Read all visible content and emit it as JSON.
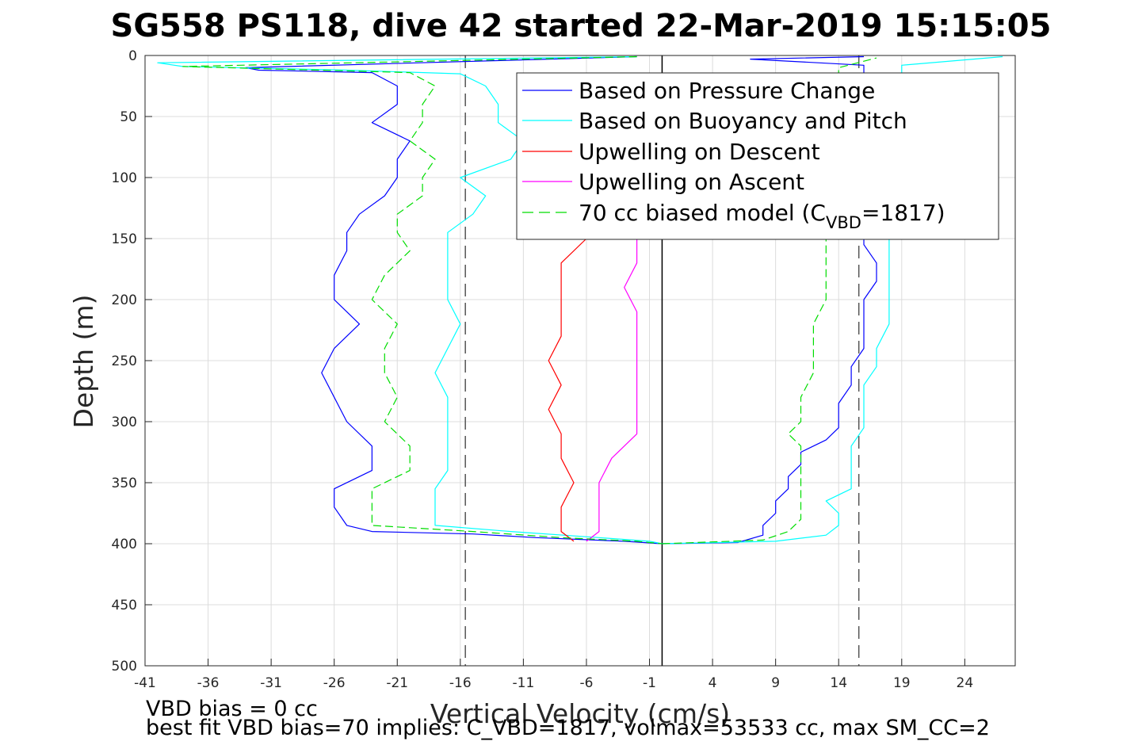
{
  "chart_data": {
    "type": "line",
    "title": "SG558 PS118, dive 42 started 22-Mar-2019 15:15:05",
    "xlabel": "Vertical Velocity (cm/s)",
    "ylabel": "Depth (m)",
    "xlim": [
      -41,
      28
    ],
    "ylim": [
      0,
      500
    ],
    "y_reversed": true,
    "grid": true,
    "xticks": [
      -41,
      -36,
      -31,
      -26,
      -21,
      -16,
      -11,
      -6,
      -1,
      4,
      9,
      14,
      19,
      24
    ],
    "yticks": [
      0,
      50,
      100,
      150,
      200,
      250,
      300,
      350,
      400,
      450,
      500
    ],
    "legend_position": "top-right",
    "legend": [
      {
        "label": "Based on Pressure Change",
        "color": "#0000ff",
        "dash": "solid"
      },
      {
        "label": "Based on Buoyancy and Pitch",
        "color": "#00ffff",
        "dash": "solid"
      },
      {
        "label": "Upwelling on Descent",
        "color": "#ff0000",
        "dash": "solid"
      },
      {
        "label": "Upwelling on Ascent",
        "color": "#ff00ff",
        "dash": "solid"
      },
      {
        "label_prefix": "70 cc biased model (C",
        "label_sub": "VBD",
        "label_suffix": "=1817)",
        "color": "#00dd00",
        "dash": "dashed"
      }
    ],
    "reference_lines": [
      {
        "x": -15.6,
        "style": "dashed",
        "color": "#555555"
      },
      {
        "x": 15.6,
        "style": "dashed",
        "color": "#555555"
      },
      {
        "x": 0,
        "style": "solid",
        "color": "#000000"
      }
    ],
    "series": [
      {
        "name": "Based on Pressure Change",
        "color": "#0000ff",
        "dash": "solid",
        "points": [
          [
            -2,
            1
          ],
          [
            -33,
            10
          ],
          [
            -32,
            12
          ],
          [
            -23,
            14
          ],
          [
            -21,
            25
          ],
          [
            -21,
            40
          ],
          [
            -23,
            55
          ],
          [
            -20,
            70
          ],
          [
            -21,
            85
          ],
          [
            -21,
            100
          ],
          [
            -22,
            115
          ],
          [
            -24,
            130
          ],
          [
            -25,
            145
          ],
          [
            -25,
            160
          ],
          [
            -26,
            180
          ],
          [
            -26,
            200
          ],
          [
            -24,
            220
          ],
          [
            -26,
            240
          ],
          [
            -27,
            260
          ],
          [
            -26,
            280
          ],
          [
            -25,
            300
          ],
          [
            -23,
            320
          ],
          [
            -23,
            340
          ],
          [
            -26,
            355
          ],
          [
            -26,
            370
          ],
          [
            -25,
            385
          ],
          [
            -23,
            390
          ],
          [
            -15,
            392
          ],
          [
            -10,
            395
          ],
          [
            -3,
            398
          ],
          [
            0,
            400
          ]
        ]
      },
      {
        "name": "Based on Buoyancy and Pitch",
        "color": "#00ffff",
        "dash": "solid",
        "points": [
          [
            -2,
            1
          ],
          [
            -40,
            6
          ],
          [
            -38,
            9
          ],
          [
            -25,
            12
          ],
          [
            -16,
            15
          ],
          [
            -14,
            25
          ],
          [
            -13,
            40
          ],
          [
            -13,
            55
          ],
          [
            -11,
            70
          ],
          [
            -12,
            85
          ],
          [
            -16,
            100
          ],
          [
            -14,
            115
          ],
          [
            -15,
            130
          ],
          [
            -17,
            145
          ],
          [
            -17,
            160
          ],
          [
            -17,
            180
          ],
          [
            -17,
            200
          ],
          [
            -16,
            220
          ],
          [
            -17,
            240
          ],
          [
            -18,
            260
          ],
          [
            -17,
            280
          ],
          [
            -17,
            300
          ],
          [
            -17,
            320
          ],
          [
            -17,
            340
          ],
          [
            -18,
            355
          ],
          [
            -18,
            370
          ],
          [
            -18,
            385
          ],
          [
            -12,
            390
          ],
          [
            -5,
            395
          ],
          [
            -1,
            398
          ],
          [
            0,
            400
          ]
        ]
      },
      {
        "name": "Upwelling on Descent",
        "color": "#ff0000",
        "dash": "solid",
        "points": [
          [
            -6,
            150
          ],
          [
            -8,
            170
          ],
          [
            -8,
            190
          ],
          [
            -8,
            210
          ],
          [
            -8,
            230
          ],
          [
            -9,
            250
          ],
          [
            -8,
            270
          ],
          [
            -9,
            290
          ],
          [
            -8,
            310
          ],
          [
            -8,
            330
          ],
          [
            -7,
            350
          ],
          [
            -8,
            370
          ],
          [
            -8,
            390
          ],
          [
            -7,
            398
          ]
        ]
      },
      {
        "name": "Upwelling on Ascent",
        "color": "#ff00ff",
        "dash": "solid",
        "points": [
          [
            -2,
            150
          ],
          [
            -2,
            170
          ],
          [
            -3,
            190
          ],
          [
            -2,
            210
          ],
          [
            -2,
            230
          ],
          [
            -2,
            250
          ],
          [
            -2,
            270
          ],
          [
            -2,
            290
          ],
          [
            -2,
            310
          ],
          [
            -4,
            330
          ],
          [
            -5,
            350
          ],
          [
            -5,
            370
          ],
          [
            -5,
            390
          ],
          [
            -6,
            398
          ]
        ]
      },
      {
        "name": "70 cc biased model (C_VBD=1817)",
        "color": "#00dd00",
        "dash": "dashed",
        "points": [
          [
            -2,
            1
          ],
          [
            -38,
            9
          ],
          [
            -20,
            14
          ],
          [
            -18,
            25
          ],
          [
            -19,
            40
          ],
          [
            -19,
            55
          ],
          [
            -20,
            70
          ],
          [
            -18,
            85
          ],
          [
            -19,
            100
          ],
          [
            -19,
            115
          ],
          [
            -21,
            130
          ],
          [
            -21,
            145
          ],
          [
            -20,
            160
          ],
          [
            -22,
            180
          ],
          [
            -23,
            200
          ],
          [
            -21,
            220
          ],
          [
            -22,
            240
          ],
          [
            -22,
            260
          ],
          [
            -21,
            280
          ],
          [
            -22,
            300
          ],
          [
            -20,
            320
          ],
          [
            -20,
            340
          ],
          [
            -23,
            355
          ],
          [
            -23,
            370
          ],
          [
            -23,
            385
          ],
          [
            -15,
            390
          ],
          [
            -8,
            395
          ],
          [
            -2,
            398
          ],
          [
            0,
            400
          ]
        ]
      },
      {
        "name": "Based on Pressure Change",
        "color": "#0000ff",
        "dash": "solid",
        "points": [
          [
            0,
            400
          ],
          [
            6,
            399
          ],
          [
            8,
            393
          ],
          [
            8,
            385
          ],
          [
            9,
            375
          ],
          [
            9,
            365
          ],
          [
            10,
            355
          ],
          [
            10,
            345
          ],
          [
            11,
            335
          ],
          [
            11,
            325
          ],
          [
            13,
            315
          ],
          [
            14,
            305
          ],
          [
            14,
            295
          ],
          [
            14,
            285
          ],
          [
            15,
            270
          ],
          [
            15,
            255
          ],
          [
            16,
            240
          ],
          [
            16,
            220
          ],
          [
            16,
            200
          ],
          [
            17,
            185
          ],
          [
            17,
            170
          ],
          [
            16,
            155
          ],
          [
            16,
            140
          ],
          [
            16,
            125
          ],
          [
            16,
            110
          ],
          [
            16,
            95
          ],
          [
            16,
            80
          ],
          [
            16,
            65
          ],
          [
            16,
            50
          ],
          [
            17,
            35
          ],
          [
            16,
            20
          ],
          [
            16,
            8
          ],
          [
            7,
            3
          ],
          [
            16,
            1
          ]
        ]
      },
      {
        "name": "Based on Buoyancy and Pitch",
        "color": "#00ffff",
        "dash": "solid",
        "points": [
          [
            0,
            400
          ],
          [
            9,
            398
          ],
          [
            13,
            393
          ],
          [
            14,
            385
          ],
          [
            14,
            375
          ],
          [
            13,
            365
          ],
          [
            15,
            355
          ],
          [
            15,
            345
          ],
          [
            15,
            335
          ],
          [
            15,
            320
          ],
          [
            16,
            305
          ],
          [
            16,
            290
          ],
          [
            16,
            270
          ],
          [
            17,
            255
          ],
          [
            17,
            240
          ],
          [
            18,
            220
          ],
          [
            18,
            200
          ],
          [
            18,
            185
          ],
          [
            18,
            170
          ],
          [
            18,
            155
          ],
          [
            18,
            140
          ],
          [
            18,
            125
          ],
          [
            18,
            110
          ],
          [
            18,
            95
          ],
          [
            18,
            80
          ],
          [
            18,
            65
          ],
          [
            18,
            50
          ],
          [
            19,
            35
          ],
          [
            19,
            20
          ],
          [
            19,
            8
          ],
          [
            27,
            1
          ]
        ]
      },
      {
        "name": "70 cc biased model (C_VBD=1817)",
        "color": "#00dd00",
        "dash": "dashed",
        "points": [
          [
            0,
            400
          ],
          [
            8,
            397
          ],
          [
            10,
            390
          ],
          [
            11,
            380
          ],
          [
            11,
            370
          ],
          [
            11,
            360
          ],
          [
            11,
            350
          ],
          [
            11,
            340
          ],
          [
            11,
            330
          ],
          [
            11,
            320
          ],
          [
            10,
            310
          ],
          [
            11,
            300
          ],
          [
            11,
            290
          ],
          [
            11,
            280
          ],
          [
            12,
            260
          ],
          [
            12,
            240
          ],
          [
            12,
            220
          ],
          [
            13,
            200
          ],
          [
            13,
            180
          ],
          [
            13,
            160
          ],
          [
            13,
            150
          ],
          [
            14,
            130
          ],
          [
            14,
            110
          ],
          [
            14,
            90
          ],
          [
            14,
            70
          ],
          [
            14,
            50
          ],
          [
            14,
            30
          ],
          [
            14,
            10
          ],
          [
            17,
            2
          ]
        ]
      }
    ]
  },
  "footer": {
    "line1": "VBD bias = 0 cc",
    "line2": "best fit VBD bias=70 implies: C_VBD=1817, volmax=53533 cc, max SM_CC=2"
  }
}
